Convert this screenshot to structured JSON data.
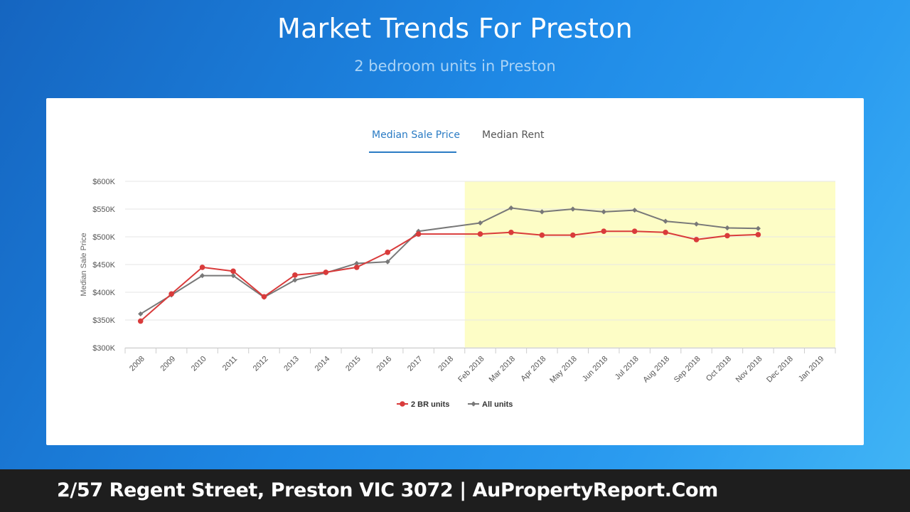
{
  "header": {
    "title": "Market Trends For Preston",
    "subtitle": "2 bedroom units in Preston"
  },
  "tabs": [
    {
      "label": "Median Sale Price",
      "active": true
    },
    {
      "label": "Median Rent",
      "active": false
    }
  ],
  "footer": {
    "text": "2/57 Regent Street, Preston VIC 3072 | AuPropertyReport.Com"
  },
  "colors": {
    "series_2br": "#d93b3b",
    "series_all": "#787878",
    "highlight": "#fdfdc6",
    "tab_active": "#2a7bc4"
  },
  "chart_data": {
    "type": "line",
    "ylabel": "Median Sale Price",
    "xlabel": "",
    "ylim": [
      300000,
      600000
    ],
    "y_ticks": [
      "$300K",
      "$350K",
      "$400K",
      "$450K",
      "$500K",
      "$550K",
      "$600K"
    ],
    "y_tick_values": [
      300000,
      350000,
      400000,
      450000,
      500000,
      550000,
      600000
    ],
    "categories": [
      "2008",
      "2009",
      "2010",
      "2011",
      "2012",
      "2013",
      "2014",
      "2015",
      "2016",
      "2017",
      "2018",
      "Feb 2018",
      "Mar 2018",
      "Apr 2018",
      "May 2018",
      "Jun 2018",
      "Jul 2018",
      "Aug 2018",
      "Sep 2018",
      "Oct 2018",
      "Nov 2018",
      "Dec 2018",
      "Jan 2019"
    ],
    "highlight_range": [
      "Feb 2018",
      "Jan 2019"
    ],
    "grid": true,
    "legend_position": "bottom-center",
    "series": [
      {
        "name": "2 BR units",
        "marker": "circle",
        "values": [
          348000,
          397000,
          445000,
          438000,
          392000,
          431000,
          436000,
          445000,
          472000,
          505000,
          null,
          505000,
          508000,
          503000,
          503000,
          510000,
          510000,
          508000,
          495000,
          502000,
          504000,
          null,
          null
        ]
      },
      {
        "name": "All units",
        "marker": "diamond",
        "values": [
          361000,
          395000,
          430000,
          430000,
          391000,
          422000,
          435000,
          452000,
          455000,
          510000,
          null,
          525000,
          552000,
          545000,
          550000,
          545000,
          548000,
          528000,
          523000,
          516000,
          515000,
          null,
          null
        ]
      }
    ]
  }
}
